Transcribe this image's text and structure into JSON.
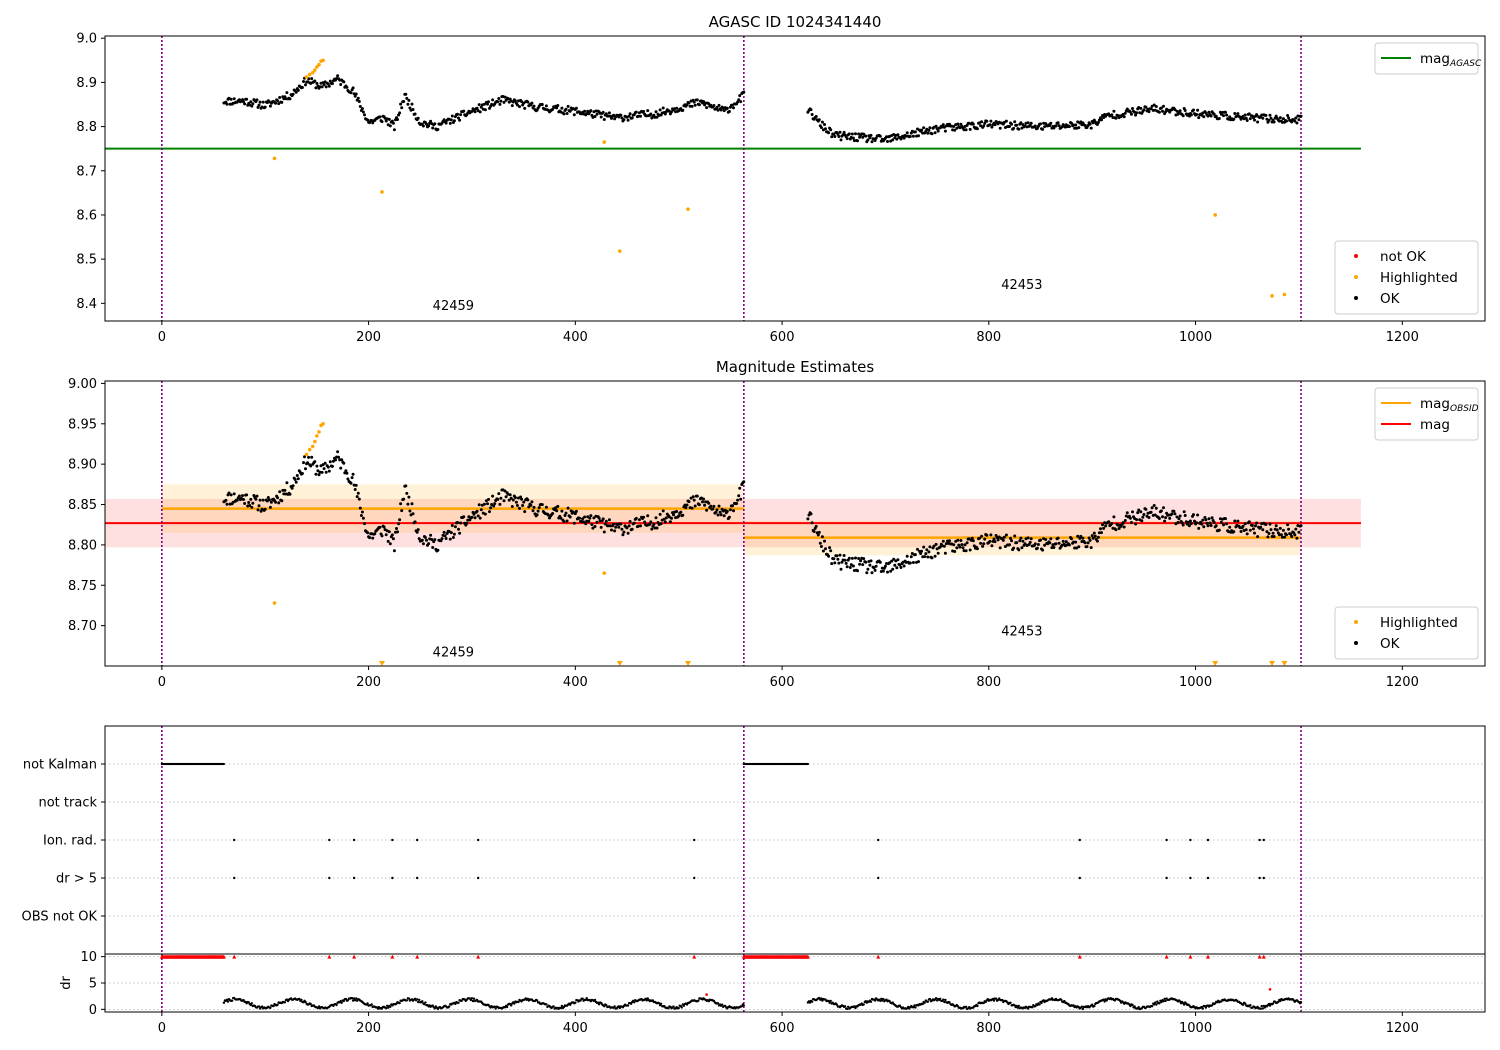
{
  "figure": {
    "colors": {
      "ok": "#000000",
      "highlighted": "#ffa500",
      "not_ok": "#ff0000",
      "agasc_line": "#008000",
      "obsid_line": "#ffa500",
      "mag_line": "#ff0000",
      "obsid_boundary": "#800080",
      "grid": "#b0b0b0"
    }
  },
  "chart_data": [
    {
      "type": "scatter",
      "title": "AGASC ID 1024341440",
      "xlim": [
        -55,
        1280
      ],
      "ylim": [
        8.36,
        9.005
      ],
      "x_ticks": [
        0,
        200,
        400,
        600,
        800,
        1000,
        1200
      ],
      "y_ticks": [
        8.4,
        8.5,
        8.6,
        8.7,
        8.8,
        8.9,
        9.0
      ],
      "obsid_boundaries": [
        0,
        563,
        1102
      ],
      "obsid_labels": [
        {
          "text": "42459",
          "x": 282,
          "y": 8.385
        },
        {
          "text": "42453",
          "x": 832,
          "y": 8.432
        }
      ],
      "lines": [
        {
          "name": "mag_AGASC",
          "y": 8.75,
          "x0": -55,
          "x1": 1160,
          "color": "#008000"
        }
      ],
      "segments": [
        {
          "x0": 60,
          "x1": 563,
          "keys": [
            [
              60,
              8.858
            ],
            [
              80,
              8.858
            ],
            [
              100,
              8.848
            ],
            [
              115,
              8.862
            ],
            [
              125,
              8.872
            ],
            [
              140,
              8.905
            ],
            [
              155,
              8.89
            ],
            [
              170,
              8.908
            ],
            [
              185,
              8.88
            ],
            [
              200,
              8.81
            ],
            [
              215,
              8.82
            ],
            [
              225,
              8.8
            ],
            [
              235,
              8.87
            ],
            [
              250,
              8.81
            ],
            [
              265,
              8.8
            ],
            [
              280,
              8.815
            ],
            [
              300,
              8.835
            ],
            [
              330,
              8.86
            ],
            [
              360,
              8.845
            ],
            [
              400,
              8.835
            ],
            [
              440,
              8.82
            ],
            [
              480,
              8.83
            ],
            [
              520,
              8.855
            ],
            [
              545,
              8.835
            ],
            [
              563,
              8.87
            ]
          ],
          "noise": 0.009
        },
        {
          "x0": 625,
          "x1": 1102,
          "keys": [
            [
              625,
              8.84
            ],
            [
              635,
              8.81
            ],
            [
              650,
              8.78
            ],
            [
              700,
              8.77
            ],
            [
              750,
              8.795
            ],
            [
              800,
              8.805
            ],
            [
              850,
              8.8
            ],
            [
              900,
              8.805
            ],
            [
              915,
              8.825
            ],
            [
              960,
              8.84
            ],
            [
              1000,
              8.83
            ],
            [
              1050,
              8.82
            ],
            [
              1102,
              8.815
            ]
          ],
          "noise": 0.009
        }
      ],
      "highlighted": [
        [
          109,
          8.728
        ],
        [
          213,
          8.652
        ],
        [
          428,
          8.765
        ],
        [
          443,
          8.518
        ],
        [
          509,
          8.613
        ],
        [
          1019,
          8.6
        ],
        [
          1074,
          8.417
        ],
        [
          1086,
          8.42
        ],
        [
          140,
          8.912
        ],
        [
          143,
          8.918
        ],
        [
          146,
          8.922
        ],
        [
          148,
          8.928
        ],
        [
          150,
          8.935
        ],
        [
          152,
          8.94
        ],
        [
          154,
          8.948
        ],
        [
          156,
          8.95
        ]
      ],
      "legends": [
        {
          "entries": [
            {
              "label": "mag",
              "sub": "AGASC",
              "kind": "line",
              "color": "#008000"
            }
          ]
        },
        {
          "entries": [
            {
              "label": "not OK",
              "kind": "dot",
              "color": "#ff0000"
            },
            {
              "label": "Highlighted",
              "kind": "dot",
              "color": "#ffa500"
            },
            {
              "label": "OK",
              "kind": "dot",
              "color": "#000000"
            }
          ]
        }
      ]
    },
    {
      "type": "scatter",
      "title": "Magnitude Estimates",
      "xlim": [
        -55,
        1280
      ],
      "ylim": [
        8.65,
        9.003
      ],
      "x_ticks": [
        0,
        200,
        400,
        600,
        800,
        1000,
        1200
      ],
      "y_ticks": [
        8.7,
        8.75,
        8.8,
        8.85,
        8.9,
        8.95,
        9.0
      ],
      "obsid_boundaries": [
        0,
        563,
        1102
      ],
      "obsid_labels": [
        {
          "text": "42459",
          "x": 282,
          "y": 8.662
        },
        {
          "text": "42453",
          "x": 832,
          "y": 8.688
        }
      ],
      "mag": {
        "value": 8.827,
        "band": [
          8.797,
          8.857
        ],
        "x0": -55,
        "x1": 1160
      },
      "mag_obsid": [
        {
          "value": 8.845,
          "band": [
            8.815,
            8.875
          ],
          "x0": 0,
          "x1": 563
        },
        {
          "value": 8.809,
          "band": [
            8.787,
            8.83
          ],
          "x0": 563,
          "x1": 1102
        }
      ],
      "segments": [
        {
          "x0": 60,
          "x1": 563,
          "keys": [
            [
              60,
              8.858
            ],
            [
              80,
              8.858
            ],
            [
              100,
              8.848
            ],
            [
              115,
              8.862
            ],
            [
              125,
              8.872
            ],
            [
              140,
              8.905
            ],
            [
              155,
              8.89
            ],
            [
              170,
              8.908
            ],
            [
              185,
              8.88
            ],
            [
              200,
              8.81
            ],
            [
              215,
              8.82
            ],
            [
              225,
              8.8
            ],
            [
              235,
              8.87
            ],
            [
              250,
              8.81
            ],
            [
              265,
              8.8
            ],
            [
              280,
              8.815
            ],
            [
              300,
              8.835
            ],
            [
              330,
              8.86
            ],
            [
              360,
              8.845
            ],
            [
              400,
              8.835
            ],
            [
              440,
              8.82
            ],
            [
              480,
              8.83
            ],
            [
              520,
              8.855
            ],
            [
              545,
              8.835
            ],
            [
              563,
              8.87
            ]
          ],
          "noise": 0.009
        },
        {
          "x0": 625,
          "x1": 1102,
          "keys": [
            [
              625,
              8.84
            ],
            [
              635,
              8.81
            ],
            [
              650,
              8.78
            ],
            [
              700,
              8.77
            ],
            [
              750,
              8.795
            ],
            [
              800,
              8.805
            ],
            [
              850,
              8.8
            ],
            [
              900,
              8.805
            ],
            [
              915,
              8.825
            ],
            [
              960,
              8.84
            ],
            [
              1000,
              8.83
            ],
            [
              1050,
              8.82
            ],
            [
              1102,
              8.815
            ]
          ],
          "noise": 0.009
        }
      ],
      "highlighted": [
        [
          109,
          8.728
        ],
        [
          428,
          8.765
        ],
        [
          140,
          8.912
        ],
        [
          143,
          8.918
        ],
        [
          146,
          8.922
        ],
        [
          148,
          8.928
        ],
        [
          150,
          8.935
        ],
        [
          152,
          8.94
        ],
        [
          154,
          8.948
        ],
        [
          156,
          8.95
        ]
      ],
      "below_range_markers": [
        213,
        443,
        509,
        1019,
        1074,
        1086
      ],
      "legends": [
        {
          "entries": [
            {
              "label": "mag",
              "sub": "OBSID",
              "kind": "line",
              "color": "#ffa500"
            },
            {
              "label": "mag",
              "kind": "line",
              "color": "#ff0000"
            }
          ]
        },
        {
          "entries": [
            {
              "label": "Highlighted",
              "kind": "dot",
              "color": "#ffa500"
            },
            {
              "label": "OK",
              "kind": "dot",
              "color": "#000000"
            }
          ]
        }
      ]
    },
    {
      "type": "scatter",
      "xlim": [
        -55,
        1280
      ],
      "flag_rows": [
        "not Kalman",
        "not track",
        "Ion. rad.",
        "dr > 5",
        "OBS not OK"
      ],
      "obsid_boundaries": [
        0,
        563,
        1102
      ],
      "not_kalman_ranges": [
        [
          0,
          60
        ],
        [
          563,
          625
        ]
      ],
      "events": [
        70,
        162,
        186,
        223,
        247,
        306,
        515,
        693,
        888,
        972,
        995,
        1012,
        1062,
        1066
      ]
    },
    {
      "type": "scatter",
      "ylabel": "dr",
      "xlim": [
        -55,
        1280
      ],
      "ylim": [
        -0.5,
        10.5
      ],
      "x_ticks": [
        0,
        200,
        400,
        600,
        800,
        1000,
        1200
      ],
      "y_ticks": [
        0,
        5,
        10
      ],
      "obsid_boundaries": [
        0,
        563,
        1102
      ],
      "clipped_at_10": [
        [
          0,
          60
        ],
        [
          563,
          625
        ]
      ],
      "clipped_events": [
        70,
        162,
        186,
        223,
        247,
        306,
        515,
        693,
        888,
        972,
        995,
        1012,
        1062,
        1066
      ],
      "dr_segments": [
        [
          60,
          563
        ],
        [
          625,
          1102
        ]
      ],
      "outliers_not_ok": [
        [
          527,
          2.8
        ],
        [
          1072,
          3.8
        ]
      ]
    }
  ]
}
